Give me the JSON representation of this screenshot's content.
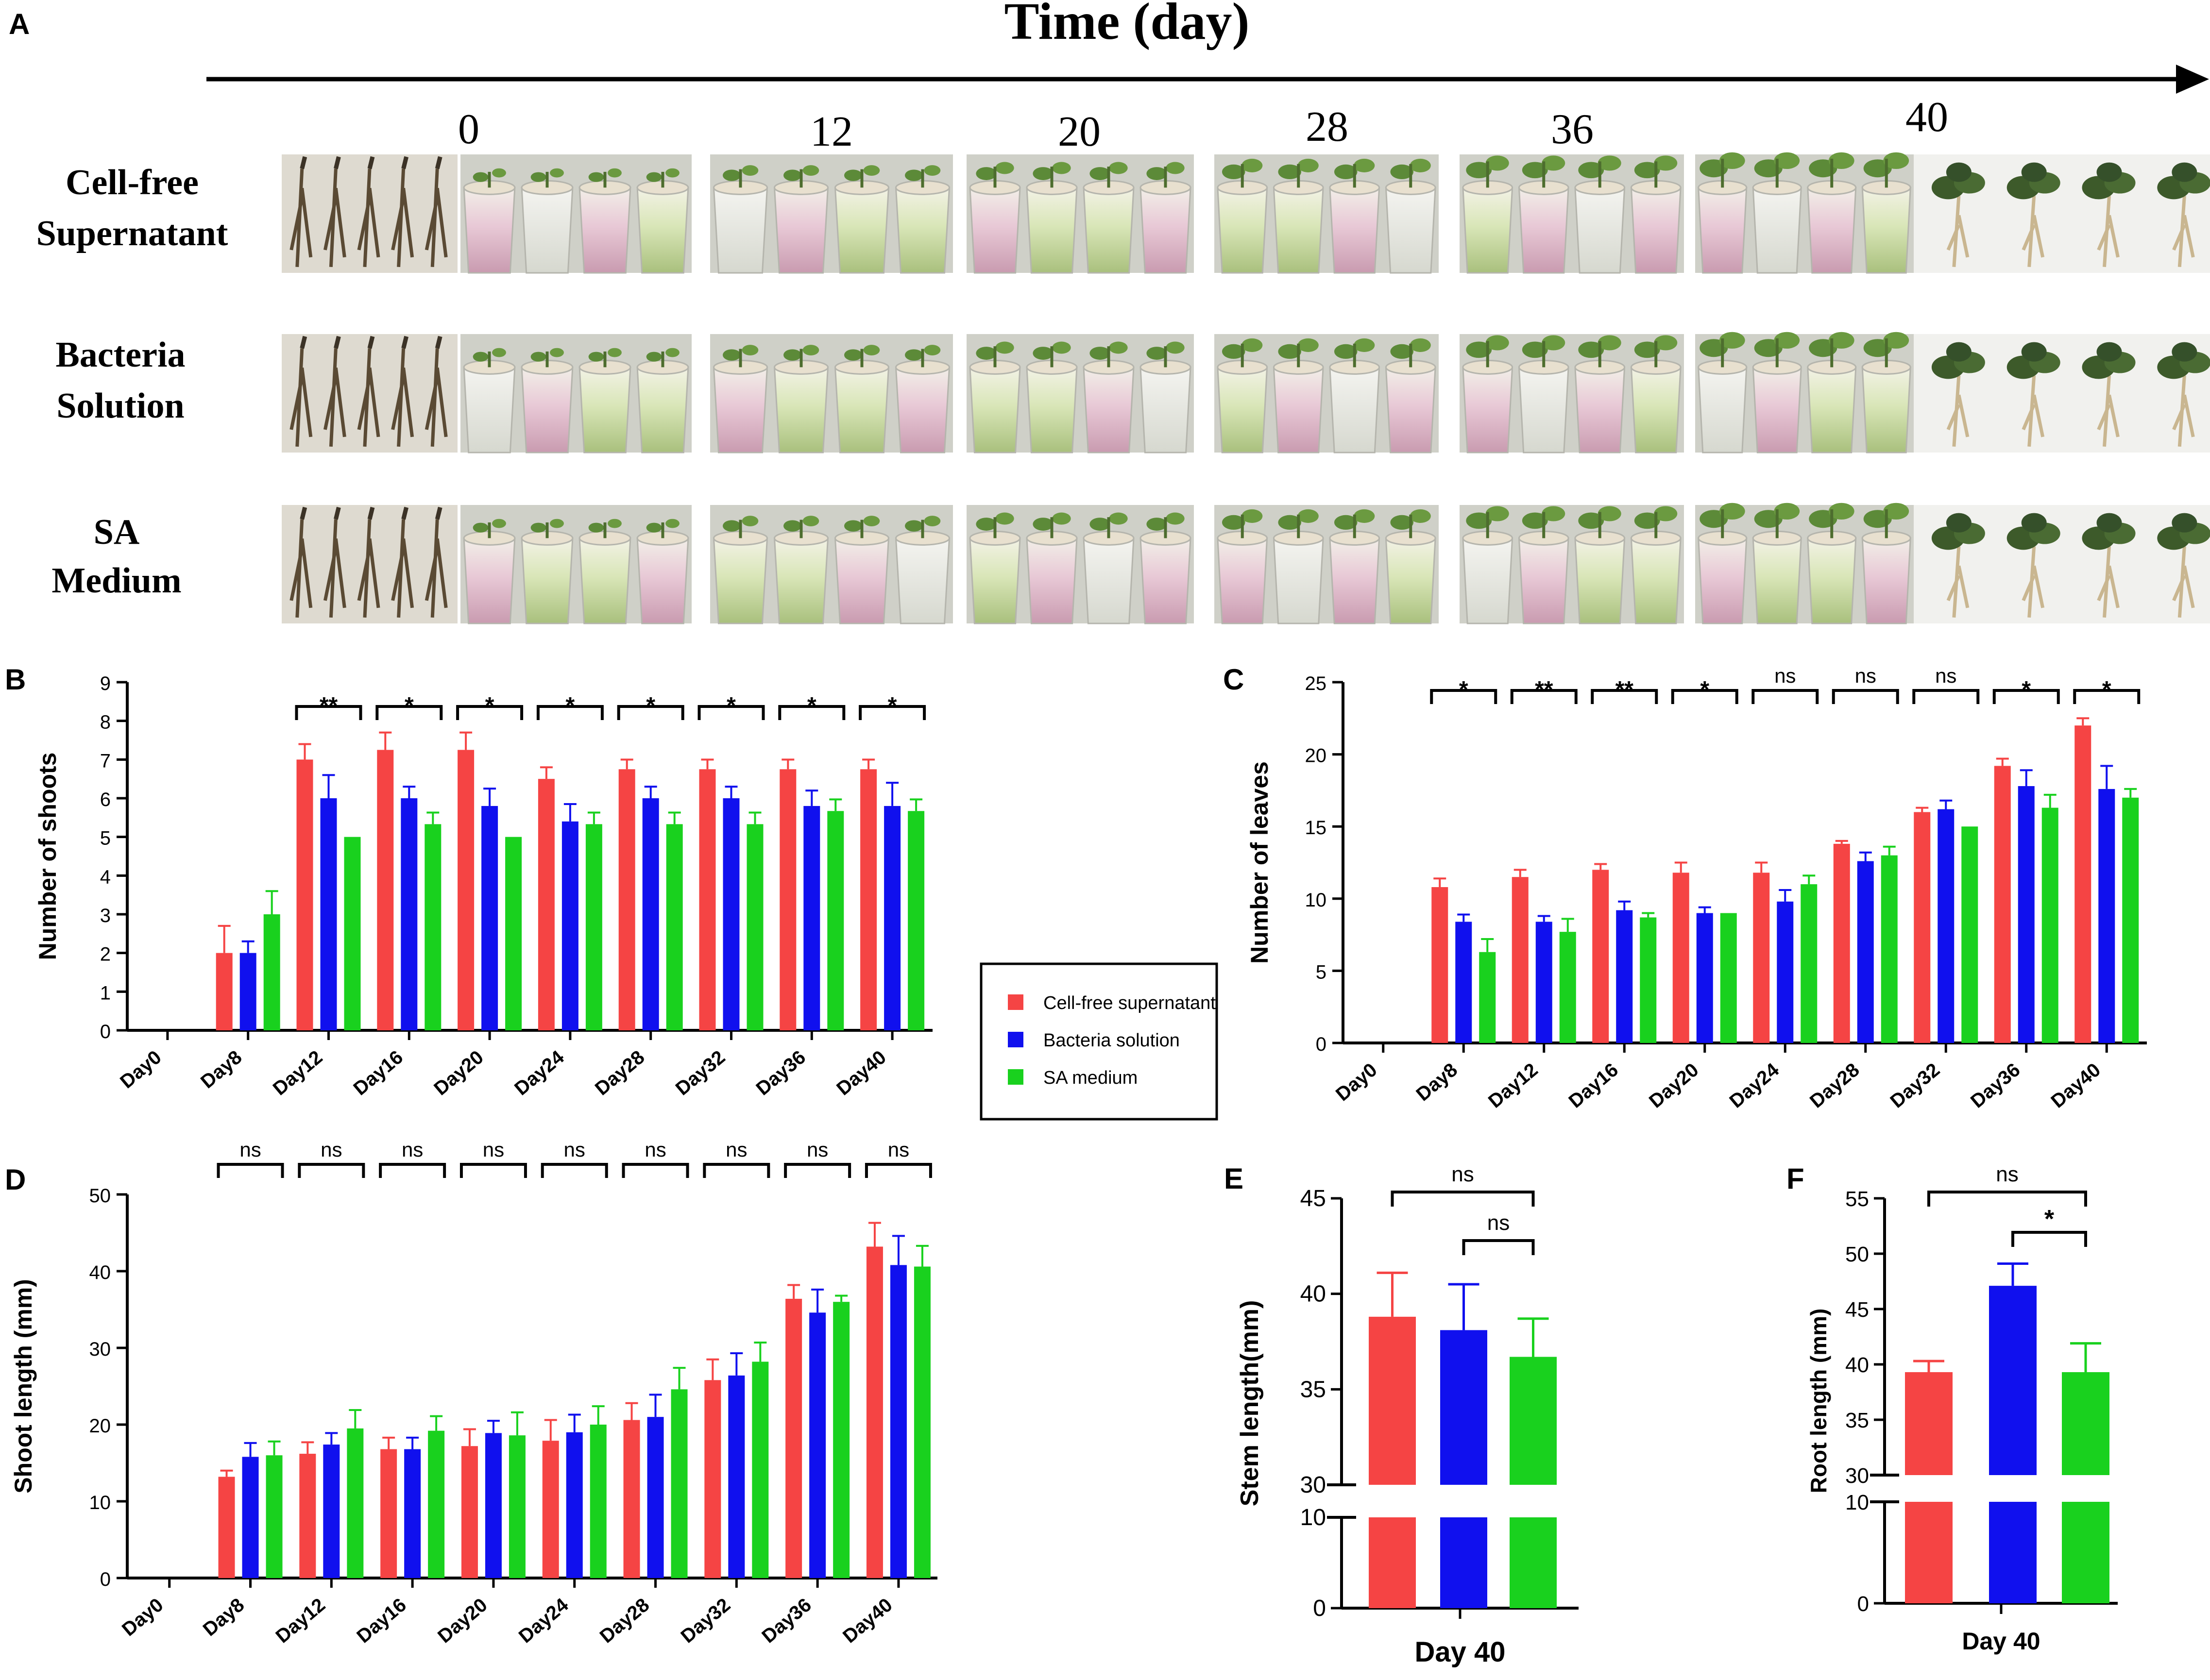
{
  "colors": {
    "red": "#f54444",
    "blue": "#1010ee",
    "green": "#19d11e",
    "ink": "#000000"
  },
  "panelA": {
    "letter": "A",
    "title": "Time (day)",
    "days": [
      "0",
      "12",
      "20",
      "28",
      "36",
      "40"
    ],
    "rows": [
      {
        "line1": "Cell-free",
        "line2": "Supernatant"
      },
      {
        "line1": "Bacteria",
        "line2": "Solution"
      },
      {
        "line1": "SA",
        "line2": "Medium"
      }
    ]
  },
  "legend": [
    "Cell-free supernatant",
    "Bacteria solution",
    "SA medium"
  ],
  "chart_data": [
    {
      "panel": "B",
      "type": "bar",
      "ylabel": "Number of shoots",
      "ylim": [
        0,
        9
      ],
      "yticks": [
        0,
        1,
        2,
        3,
        4,
        5,
        6,
        7,
        8,
        9
      ],
      "categories": [
        "Day0",
        "Day8",
        "Day12",
        "Day16",
        "Day20",
        "Day24",
        "Day28",
        "Day32",
        "Day36",
        "Day40"
      ],
      "series": [
        {
          "name": "Cell-free supernatant",
          "values": [
            0,
            2.0,
            7.0,
            7.25,
            7.25,
            6.5,
            6.75,
            6.75,
            6.75,
            6.75
          ],
          "errors": [
            0,
            0.7,
            0.4,
            0.45,
            0.45,
            0.3,
            0.25,
            0.25,
            0.25,
            0.25
          ]
        },
        {
          "name": "Bacteria solution",
          "values": [
            0,
            2.0,
            6.0,
            6.0,
            5.8,
            5.4,
            6.0,
            6.0,
            5.8,
            5.8
          ],
          "errors": [
            0,
            0.3,
            0.6,
            0.3,
            0.45,
            0.45,
            0.3,
            0.3,
            0.4,
            0.6
          ]
        },
        {
          "name": "SA medium",
          "values": [
            0,
            3.0,
            5.0,
            5.33,
            5.0,
            5.33,
            5.33,
            5.33,
            5.67,
            5.67
          ],
          "errors": [
            0,
            0.6,
            0,
            0.3,
            0,
            0.3,
            0.3,
            0.3,
            0.3,
            0.3
          ]
        }
      ],
      "significance": [
        {
          "category": "Day12",
          "label": "**"
        },
        {
          "category": "Day16",
          "label": "*"
        },
        {
          "category": "Day20",
          "label": "*"
        },
        {
          "category": "Day24",
          "label": "*"
        },
        {
          "category": "Day28",
          "label": "*"
        },
        {
          "category": "Day32",
          "label": "*"
        },
        {
          "category": "Day36",
          "label": "*"
        },
        {
          "category": "Day40",
          "label": "*"
        }
      ]
    },
    {
      "panel": "C",
      "type": "bar",
      "ylabel": "Number of leaves",
      "ylim": [
        0,
        25
      ],
      "yticks": [
        0,
        5,
        10,
        15,
        20,
        25
      ],
      "categories": [
        "Day0",
        "Day8",
        "Day12",
        "Day16",
        "Day20",
        "Day24",
        "Day28",
        "Day32",
        "Day36",
        "Day40"
      ],
      "series": [
        {
          "name": "Cell-free supernatant",
          "values": [
            0,
            10.8,
            11.5,
            12.0,
            11.8,
            11.8,
            13.8,
            16.0,
            19.2,
            22.0
          ],
          "errors": [
            0,
            0.6,
            0.5,
            0.4,
            0.7,
            0.7,
            0.2,
            0.3,
            0.5,
            0.5
          ]
        },
        {
          "name": "Bacteria solution",
          "values": [
            0,
            8.4,
            8.4,
            9.2,
            9.0,
            9.8,
            12.6,
            16.2,
            17.8,
            17.6
          ],
          "errors": [
            0,
            0.5,
            0.4,
            0.6,
            0.4,
            0.8,
            0.6,
            0.6,
            1.1,
            1.6
          ]
        },
        {
          "name": "SA medium",
          "values": [
            0,
            6.3,
            7.7,
            8.7,
            9.0,
            11.0,
            13.0,
            15.0,
            16.3,
            17.0
          ],
          "errors": [
            0,
            0.9,
            0.9,
            0.3,
            0,
            0.6,
            0.6,
            0,
            0.9,
            0.6
          ]
        }
      ],
      "significance": [
        {
          "category": "Day8",
          "label": "*"
        },
        {
          "category": "Day12",
          "label": "**"
        },
        {
          "category": "Day16",
          "label": "**"
        },
        {
          "category": "Day20",
          "label": "*"
        },
        {
          "category": "Day24",
          "label": "ns"
        },
        {
          "category": "Day28",
          "label": "ns"
        },
        {
          "category": "Day32",
          "label": "ns"
        },
        {
          "category": "Day36",
          "label": "*"
        },
        {
          "category": "Day40",
          "label": "*"
        }
      ]
    },
    {
      "panel": "D",
      "type": "bar",
      "ylabel": "Shoot length (mm)",
      "ylim": [
        0,
        50
      ],
      "yticks": [
        0,
        10,
        20,
        30,
        40,
        50
      ],
      "categories": [
        "Day0",
        "Day8",
        "Day12",
        "Day16",
        "Day20",
        "Day24",
        "Day28",
        "Day32",
        "Day36",
        "Day40"
      ],
      "series": [
        {
          "name": "Cell-free supernatant",
          "values": [
            0,
            13.2,
            16.2,
            16.8,
            17.2,
            17.9,
            20.6,
            25.8,
            36.4,
            43.2
          ],
          "errors": [
            0,
            0.8,
            1.5,
            1.5,
            2.2,
            2.7,
            2.2,
            2.7,
            1.8,
            3.1
          ]
        },
        {
          "name": "Bacteria solution",
          "values": [
            0,
            15.8,
            17.4,
            16.8,
            18.9,
            19.0,
            21.0,
            26.4,
            34.6,
            40.8
          ],
          "errors": [
            0,
            1.8,
            1.5,
            1.5,
            1.6,
            2.3,
            2.9,
            2.9,
            3.0,
            3.8
          ]
        },
        {
          "name": "SA medium",
          "values": [
            0,
            16.0,
            19.5,
            19.2,
            18.6,
            20.0,
            24.6,
            28.2,
            36.0,
            40.6
          ],
          "errors": [
            0,
            1.8,
            2.4,
            1.9,
            3.0,
            2.4,
            2.8,
            2.5,
            0.8,
            2.7
          ]
        }
      ],
      "significance": [
        {
          "category": "Day8",
          "label": "ns"
        },
        {
          "category": "Day12",
          "label": "ns"
        },
        {
          "category": "Day16",
          "label": "ns"
        },
        {
          "category": "Day20",
          "label": "ns"
        },
        {
          "category": "Day24",
          "label": "ns"
        },
        {
          "category": "Day28",
          "label": "ns"
        },
        {
          "category": "Day32",
          "label": "ns"
        },
        {
          "category": "Day36",
          "label": "ns"
        },
        {
          "category": "Day40",
          "label": "ns"
        }
      ]
    },
    {
      "panel": "E",
      "type": "bar",
      "ylabel": "Stem length(mm)",
      "xlabel": "Day 40",
      "broken_axis": {
        "lower": [
          0,
          10
        ],
        "upper": [
          30,
          45
        ]
      },
      "yticks_lower": [
        0,
        10
      ],
      "yticks_upper": [
        30,
        35,
        40,
        45
      ],
      "categories": [
        "Cell-free supernatant",
        "Bacteria solution",
        "SA medium"
      ],
      "values": [
        38.8,
        38.1,
        36.7
      ],
      "errors": [
        2.3,
        2.4,
        2.0
      ],
      "significance": [
        {
          "pair": [
            0,
            2
          ],
          "label": "ns"
        },
        {
          "pair": [
            1,
            2
          ],
          "label": "ns"
        }
      ]
    },
    {
      "panel": "F",
      "type": "bar",
      "ylabel": "Root length (mm)",
      "xlabel": "Day 40",
      "broken_axis": {
        "lower": [
          0,
          10
        ],
        "upper": [
          30,
          55
        ]
      },
      "yticks_lower": [
        0,
        10
      ],
      "yticks_upper": [
        30,
        35,
        40,
        45,
        50,
        55
      ],
      "categories": [
        "Cell-free supernatant",
        "Bacteria solution",
        "SA medium"
      ],
      "values": [
        39.3,
        47.1,
        39.3
      ],
      "errors": [
        1.0,
        2.0,
        2.6
      ],
      "significance": [
        {
          "pair": [
            0,
            2
          ],
          "label": "ns"
        },
        {
          "pair": [
            1,
            2
          ],
          "label": "*"
        }
      ]
    }
  ]
}
